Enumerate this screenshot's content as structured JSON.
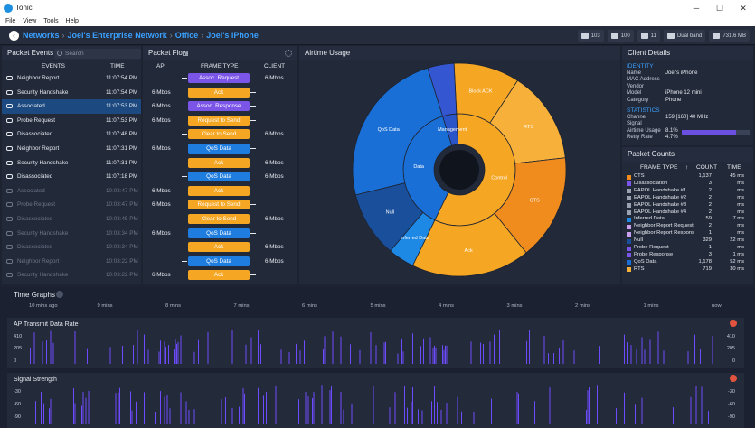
{
  "window": {
    "title": "Tonic"
  },
  "menu": [
    "File",
    "View",
    "Tools",
    "Help"
  ],
  "breadcrumb": [
    "Networks",
    "Joel's Enterprise Network",
    "Office",
    "Joel's iPhone"
  ],
  "status": [
    {
      "icon": "wifi-icon",
      "value": "103"
    },
    {
      "icon": "wifi-icon",
      "value": "100"
    },
    {
      "icon": "wifi-icon",
      "value": "11"
    },
    {
      "icon": "band-icon",
      "value": "Dual band"
    },
    {
      "icon": "memory-icon",
      "value": "731.6 MB"
    }
  ],
  "packet_events": {
    "title": "Packet Events",
    "search_placeholder": "Search",
    "col_events": "EVENTS",
    "col_time": "TIME",
    "rows": [
      {
        "label": "Neighbor Report",
        "time": "11:07:54 PM",
        "state": "normal"
      },
      {
        "label": "Security Handshake",
        "time": "11:07:54 PM",
        "state": "normal"
      },
      {
        "label": "Associated",
        "time": "11:07:53 PM",
        "state": "selected"
      },
      {
        "label": "Probe Request",
        "time": "11:07:53 PM",
        "state": "normal"
      },
      {
        "label": "Disassociated",
        "time": "11:07:48 PM",
        "state": "normal"
      },
      {
        "label": "Neighbor Report",
        "time": "11:07:31 PM",
        "state": "normal"
      },
      {
        "label": "Security Handshake",
        "time": "11:07:31 PM",
        "state": "normal"
      },
      {
        "label": "Disassociated",
        "time": "11:07:18 PM",
        "state": "normal"
      },
      {
        "label": "Associated",
        "time": "10:03:47 PM",
        "state": "dim"
      },
      {
        "label": "Probe Request",
        "time": "10:03:47 PM",
        "state": "dim"
      },
      {
        "label": "Disassociated",
        "time": "10:03:45 PM",
        "state": "dim"
      },
      {
        "label": "Security Handshake",
        "time": "10:03:34 PM",
        "state": "dim"
      },
      {
        "label": "Disassociated",
        "time": "10:03:34 PM",
        "state": "dim"
      },
      {
        "label": "Neighbor Report",
        "time": "10:03:22 PM",
        "state": "dim"
      },
      {
        "label": "Security Handshake",
        "time": "10:03:22 PM",
        "state": "dim"
      }
    ]
  },
  "packet_flow": {
    "title": "Packet Flow",
    "col_ap": "AP",
    "col_frame": "FRAME TYPE",
    "col_client": "CLIENT",
    "rows": [
      {
        "ap": "",
        "frame": "Assoc. Request",
        "client": "6 Mbps",
        "color": "#7b55e8",
        "dir": "left"
      },
      {
        "ap": "6 Mbps",
        "frame": "Ack",
        "client": "",
        "color": "#f5a623",
        "dir": "right"
      },
      {
        "ap": "6 Mbps",
        "frame": "Assoc. Response",
        "client": "",
        "color": "#7b55e8",
        "dir": "right"
      },
      {
        "ap": "6 Mbps",
        "frame": "Request to Send",
        "client": "",
        "color": "#f5a623",
        "dir": "right"
      },
      {
        "ap": "",
        "frame": "Clear to Send",
        "client": "6 Mbps",
        "color": "#f5a623",
        "dir": "left"
      },
      {
        "ap": "6 Mbps",
        "frame": "QoS Data",
        "client": "",
        "color": "#1f7de0",
        "dir": "right"
      },
      {
        "ap": "",
        "frame": "Ack",
        "client": "6 Mbps",
        "color": "#f5a623",
        "dir": "left"
      },
      {
        "ap": "",
        "frame": "QoS Data",
        "client": "6 Mbps",
        "color": "#1f7de0",
        "dir": "left"
      },
      {
        "ap": "6 Mbps",
        "frame": "Ack",
        "client": "",
        "color": "#f5a623",
        "dir": "right"
      },
      {
        "ap": "6 Mbps",
        "frame": "Request to Send",
        "client": "",
        "color": "#f5a623",
        "dir": "right"
      },
      {
        "ap": "",
        "frame": "Clear to Send",
        "client": "6 Mbps",
        "color": "#f5a623",
        "dir": "left"
      },
      {
        "ap": "6 Mbps",
        "frame": "QoS Data",
        "client": "",
        "color": "#1f7de0",
        "dir": "right"
      },
      {
        "ap": "",
        "frame": "Ack",
        "client": "6 Mbps",
        "color": "#f5a623",
        "dir": "left"
      },
      {
        "ap": "",
        "frame": "QoS Data",
        "client": "6 Mbps",
        "color": "#1f7de0",
        "dir": "left"
      },
      {
        "ap": "6 Mbps",
        "frame": "Ack",
        "client": "",
        "color": "#f5a623",
        "dir": "right"
      }
    ]
  },
  "airtime": {
    "title": "Airtime Usage",
    "inner": [
      {
        "label": "Control",
        "value": 58,
        "color": "#f5a623"
      },
      {
        "label": "Data",
        "value": 38,
        "color": "#1a6fd6"
      },
      {
        "label": "Management",
        "value": 4,
        "color": "#2a55c8"
      }
    ],
    "outer": [
      {
        "label": "Block ACK",
        "value": 10,
        "color": "#f5a623"
      },
      {
        "label": "RTS",
        "value": 14,
        "color": "#f7b03a"
      },
      {
        "label": "CTS",
        "value": 16,
        "color": "#f08c1e"
      },
      {
        "label": "Ack",
        "value": 18,
        "color": "#f5a623"
      },
      {
        "label": "Inferred Data",
        "value": 4,
        "color": "#1e88e5"
      },
      {
        "label": "Null",
        "value": 10,
        "color": "#1a4f9c"
      },
      {
        "label": "QoS Data",
        "value": 24,
        "color": "#1a6fd6"
      },
      {
        "label": "",
        "value": 4,
        "color": "#3456d0"
      }
    ]
  },
  "client_details": {
    "title": "Client Details",
    "identity_label": "IDENTITY",
    "fields": [
      {
        "k": "Name",
        "v": "Joel's iPhone"
      },
      {
        "k": "MAC Address",
        "v": ""
      },
      {
        "k": "Vendor",
        "v": ""
      },
      {
        "k": "Model",
        "v": "iPhone 12 mini"
      },
      {
        "k": "Category",
        "v": "Phone"
      }
    ],
    "stats_label": "STATISTICS",
    "stats": [
      {
        "k": "Channel",
        "v": "159 [160]   40 MHz"
      },
      {
        "k": "Signal",
        "v": ""
      },
      {
        "k": "Airtime Usage",
        "v": "8.1%"
      },
      {
        "k": "Retry Rate",
        "v": "4.7%"
      }
    ],
    "airtime_fraction": 0.8
  },
  "packet_counts": {
    "title": "Packet Counts",
    "col_frame": "FRAME TYPE",
    "col_count": "COUNT",
    "col_time": "TIME",
    "rows": [
      {
        "n": "CTS",
        "c": "1,137",
        "t": "45 ms",
        "color": "#f08c1e"
      },
      {
        "n": "Disassociation",
        "c": "3",
        "t": "ms",
        "color": "#7b55e8"
      },
      {
        "n": "EAPOL Handshake #1",
        "c": "2",
        "t": "ms",
        "color": "#9aa2b1"
      },
      {
        "n": "EAPOL Handshake #2",
        "c": "2",
        "t": "ms",
        "color": "#9aa2b1"
      },
      {
        "n": "EAPOL Handshake #3",
        "c": "2",
        "t": "ms",
        "color": "#9aa2b1"
      },
      {
        "n": "EAPOL Handshake #4",
        "c": "2",
        "t": "ms",
        "color": "#9aa2b1"
      },
      {
        "n": "Inferred Data",
        "c": "59",
        "t": "7 ms",
        "color": "#1e88e5"
      },
      {
        "n": "Neighbor Report Request",
        "c": "2",
        "t": "ms",
        "color": "#c9a0f0"
      },
      {
        "n": "Neighbor Report Respons",
        "c": "1",
        "t": "ms",
        "color": "#c9a0f0"
      },
      {
        "n": "Null",
        "c": "329",
        "t": "22 ms",
        "color": "#1a4f9c"
      },
      {
        "n": "Probe Request",
        "c": "1",
        "t": "ms",
        "color": "#7b55e8"
      },
      {
        "n": "Probe Response",
        "c": "3",
        "t": "1 ms",
        "color": "#7b55e8"
      },
      {
        "n": "QoS Data",
        "c": "1,178",
        "t": "52 ms",
        "color": "#1a6fd6"
      },
      {
        "n": "RTS",
        "c": "719",
        "t": "30 ms",
        "color": "#f7b03a"
      }
    ]
  },
  "time_graphs": {
    "title": "Time Graphs",
    "ticks": [
      "10 mins ago",
      "9 mins",
      "8 mins",
      "7 mins",
      "6 mins",
      "5 mins",
      "4 mins",
      "3 mins",
      "2 mins",
      "1 mins",
      "now"
    ],
    "charts": [
      {
        "title": "AP Transmit Data Rate",
        "y_ticks": [
          "410",
          "205",
          "0"
        ]
      },
      {
        "title": "Signal Strength",
        "y_ticks": [
          "-30",
          "-60",
          "-90"
        ]
      }
    ]
  }
}
